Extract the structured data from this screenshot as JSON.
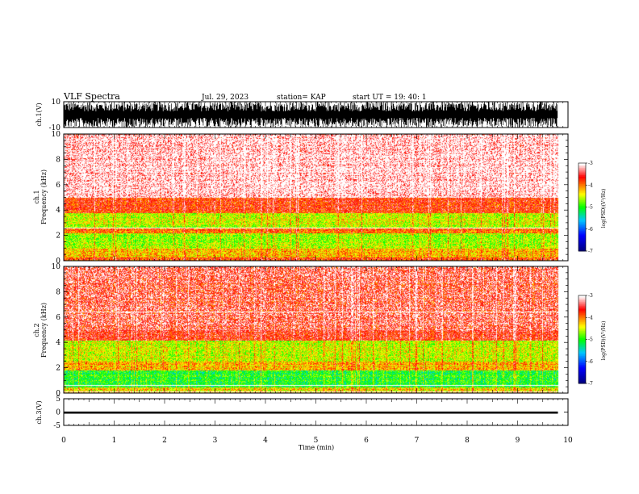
{
  "header": {
    "title": "VLF Spectra",
    "date": "Jul. 29, 2023",
    "station": "station= KAP",
    "start": "start UT =  19: 40: 1"
  },
  "chart_data": [
    {
      "type": "line",
      "panel": "ch1-waveform",
      "ylabel": "ch.1(V)",
      "ylim": [
        -10,
        10
      ],
      "y_ticks": [
        "10",
        "-10"
      ],
      "description_values": {
        "amplitude_range_V": [
          -10,
          10
        ],
        "duration_min": 9.8
      }
    },
    {
      "type": "heatmap",
      "panel": "ch1-spectrogram",
      "ylabel": "Frequency (kHz)",
      "channel_label": "ch.1",
      "ylim": [
        0,
        10
      ],
      "y_ticks": [
        "0",
        "2",
        "4",
        "6",
        "8",
        "10"
      ],
      "xlim": [
        0,
        9.8
      ],
      "bands_kHz": [
        {
          "range": [
            0.0,
            0.3
          ],
          "level": -3.8
        },
        {
          "range": [
            0.3,
            1.0
          ],
          "level": -4.2
        },
        {
          "range": [
            1.0,
            2.2
          ],
          "level": -4.6
        },
        {
          "range": [
            2.2,
            2.6
          ],
          "level": -3.9
        },
        {
          "range": [
            2.6,
            3.8
          ],
          "level": -4.5
        },
        {
          "range": [
            3.8,
            5.0
          ],
          "level": -3.7
        },
        {
          "range": [
            5.0,
            10.0
          ],
          "level": -3.2
        }
      ],
      "colorbar": {
        "label": "log(PSD)(V²/Hz)",
        "range": [
          -7,
          -3
        ],
        "ticks": [
          "-3",
          "-4",
          "-5",
          "-6",
          "-7"
        ]
      }
    },
    {
      "type": "heatmap",
      "panel": "ch2-spectrogram",
      "ylabel": "Frequency (kHz)",
      "channel_label": "ch.2",
      "ylim": [
        0,
        10
      ],
      "y_ticks": [
        "0",
        "2",
        "4",
        "6",
        "8",
        "10"
      ],
      "xlim": [
        0,
        9.8
      ],
      "bands_kHz": [
        {
          "range": [
            0.0,
            0.5
          ],
          "level": -4.3
        },
        {
          "range": [
            0.5,
            1.8
          ],
          "level": -5.0
        },
        {
          "range": [
            1.8,
            2.5
          ],
          "level": -4.2
        },
        {
          "range": [
            2.5,
            4.2
          ],
          "level": -4.5
        },
        {
          "range": [
            4.2,
            10.0
          ],
          "level": -3.6
        }
      ],
      "colorbar": {
        "label": "log(PSD)(V²/Hz)",
        "range": [
          -7,
          -3
        ],
        "ticks": [
          "-3",
          "-4",
          "-5",
          "-6",
          "-7"
        ]
      }
    },
    {
      "type": "line",
      "panel": "ch3-waveform",
      "ylabel": "ch.3(V)",
      "ylim": [
        -5,
        5
      ],
      "y_ticks": [
        "5",
        "0",
        "-5"
      ],
      "description_values": {
        "level_V": -0.2,
        "band_V": [
          -0.6,
          0.2
        ]
      }
    }
  ],
  "x_axis": {
    "label": "Time (min)",
    "ticks": [
      "0",
      "1",
      "2",
      "3",
      "4",
      "5",
      "6",
      "7",
      "8",
      "9",
      "10"
    ],
    "range": [
      0,
      10
    ]
  },
  "colors": {
    "palette": [
      "#000080",
      "#0000ff",
      "#00c8ff",
      "#00ff00",
      "#ffff00",
      "#ff8000",
      "#ff0000",
      "#ffffff"
    ]
  }
}
